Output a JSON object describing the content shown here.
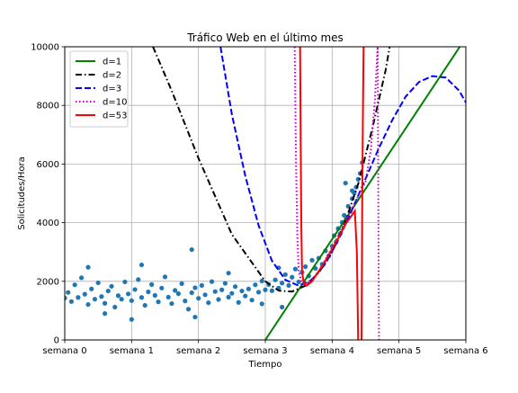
{
  "chart_data": {
    "type": "scatter",
    "title": "Tráfico Web en el último mes",
    "xlabel": "Tiempo",
    "ylabel": "Solicitudes/Hora",
    "xlim": [
      0,
      6
    ],
    "ylim": [
      0,
      10000
    ],
    "x_ticks": [
      {
        "value": 0,
        "label": "semana 0"
      },
      {
        "value": 1,
        "label": "semana 1"
      },
      {
        "value": 2,
        "label": "semana 2"
      },
      {
        "value": 3,
        "label": "semana 3"
      },
      {
        "value": 4,
        "label": "semana 4"
      },
      {
        "value": 5,
        "label": "semana 5"
      },
      {
        "value": 6,
        "label": "semana 6"
      }
    ],
    "y_ticks": [
      {
        "value": 0,
        "label": "0"
      },
      {
        "value": 2000,
        "label": "2000"
      },
      {
        "value": 4000,
        "label": "4000"
      },
      {
        "value": 6000,
        "label": "6000"
      },
      {
        "value": 8000,
        "label": "8000"
      },
      {
        "value": 10000,
        "label": "10000"
      }
    ],
    "grid": true,
    "legend_position": "top-left",
    "scatter": {
      "color": "#1f77b4",
      "description": "hourly request counts; roughly flat near 1600 until week 3.3, then rising steeply to about 6000 near week 4.4",
      "points": [
        [
          0.0,
          1430
        ],
        [
          0.05,
          1620
        ],
        [
          0.1,
          1310
        ],
        [
          0.15,
          1880
        ],
        [
          0.2,
          1450
        ],
        [
          0.25,
          2120
        ],
        [
          0.3,
          1560
        ],
        [
          0.35,
          1210
        ],
        [
          0.4,
          1740
        ],
        [
          0.45,
          1390
        ],
        [
          0.5,
          1950
        ],
        [
          0.55,
          1480
        ],
        [
          0.6,
          1250
        ],
        [
          0.65,
          1670
        ],
        [
          0.7,
          1830
        ],
        [
          0.75,
          1120
        ],
        [
          0.8,
          1510
        ],
        [
          0.85,
          1390
        ],
        [
          0.9,
          1980
        ],
        [
          0.95,
          1570
        ],
        [
          1.0,
          1340
        ],
        [
          1.05,
          1720
        ],
        [
          1.1,
          2060
        ],
        [
          1.15,
          1450
        ],
        [
          1.2,
          1180
        ],
        [
          1.25,
          1640
        ],
        [
          1.3,
          1890
        ],
        [
          1.35,
          1520
        ],
        [
          1.4,
          1300
        ],
        [
          1.45,
          1770
        ],
        [
          1.5,
          2150
        ],
        [
          1.55,
          1460
        ],
        [
          1.6,
          1240
        ],
        [
          1.65,
          1690
        ],
        [
          1.7,
          1580
        ],
        [
          1.75,
          1920
        ],
        [
          1.8,
          1330
        ],
        [
          1.85,
          1050
        ],
        [
          1.9,
          1610
        ],
        [
          1.95,
          1780
        ],
        [
          2.0,
          1420
        ],
        [
          2.05,
          1860
        ],
        [
          2.1,
          1540
        ],
        [
          2.15,
          1270
        ],
        [
          2.2,
          1990
        ],
        [
          2.25,
          1650
        ],
        [
          2.3,
          1380
        ],
        [
          2.35,
          1710
        ],
        [
          2.4,
          1930
        ],
        [
          2.45,
          1460
        ],
        [
          2.5,
          1590
        ],
        [
          2.55,
          1820
        ],
        [
          2.6,
          1280
        ],
        [
          2.65,
          1670
        ],
        [
          2.7,
          1500
        ],
        [
          2.75,
          1740
        ],
        [
          2.8,
          1360
        ],
        [
          2.85,
          1880
        ],
        [
          2.9,
          1630
        ],
        [
          2.95,
          2010
        ],
        [
          3.0,
          1710
        ],
        [
          3.05,
          1890
        ],
        [
          3.1,
          1680
        ],
        [
          3.15,
          2050
        ],
        [
          3.2,
          1770
        ],
        [
          3.25,
          1940
        ],
        [
          3.3,
          2230
        ],
        [
          3.35,
          1860
        ],
        [
          3.4,
          2140
        ],
        [
          3.45,
          2420
        ],
        [
          3.5,
          1980
        ],
        [
          3.55,
          2310
        ],
        [
          3.6,
          2500
        ],
        [
          3.65,
          2180
        ],
        [
          3.7,
          2720
        ],
        [
          3.75,
          2440
        ],
        [
          3.8,
          2790
        ],
        [
          3.85,
          2580
        ],
        [
          3.9,
          3040
        ],
        [
          3.95,
          2870
        ],
        [
          4.0,
          3200
        ],
        [
          4.03,
          3560
        ],
        [
          4.06,
          3340
        ],
        [
          4.09,
          3800
        ],
        [
          4.12,
          3620
        ],
        [
          4.15,
          4010
        ],
        [
          4.18,
          4250
        ],
        [
          4.21,
          4120
        ],
        [
          4.24,
          4560
        ],
        [
          4.27,
          4390
        ],
        [
          4.3,
          4820
        ],
        [
          4.33,
          5010
        ],
        [
          4.36,
          5210
        ],
        [
          4.39,
          5480
        ],
        [
          4.42,
          5680
        ],
        [
          4.45,
          6050
        ],
        [
          4.2,
          5350
        ],
        [
          4.3,
          5090
        ],
        [
          0.35,
          2480
        ],
        [
          1.15,
          2560
        ],
        [
          1.9,
          3080
        ],
        [
          2.45,
          2280
        ],
        [
          3.2,
          2460
        ],
        [
          1.0,
          700
        ],
        [
          0.6,
          900
        ],
        [
          1.95,
          780
        ],
        [
          2.95,
          1230
        ],
        [
          3.25,
          1120
        ]
      ]
    },
    "series": [
      {
        "name": "d=1",
        "color": "#008000",
        "dash": "solid",
        "formula": "linear fit, passes about (3, 0) and (5.9, 10000)",
        "points": [
          [
            3.0,
            0
          ],
          [
            5.91,
            10000
          ]
        ]
      },
      {
        "name": "d=2",
        "color": "#000000",
        "dash": "dashdot",
        "formula": "quadratic fit",
        "points": [
          [
            1.32,
            10000
          ],
          [
            1.6,
            8500
          ],
          [
            2.0,
            6200
          ],
          [
            2.5,
            3600
          ],
          [
            3.0,
            2000
          ],
          [
            3.2,
            1680
          ],
          [
            3.4,
            1650
          ],
          [
            3.6,
            1850
          ],
          [
            3.8,
            2300
          ],
          [
            4.0,
            3000
          ],
          [
            4.2,
            4050
          ],
          [
            4.4,
            5400
          ],
          [
            4.6,
            7200
          ],
          [
            4.8,
            9200
          ],
          [
            4.86,
            10000
          ]
        ]
      },
      {
        "name": "d=3",
        "color": "#0000ff",
        "dash": "dashed",
        "formula": "cubic fit",
        "points": [
          [
            2.33,
            10000
          ],
          [
            2.5,
            7700
          ],
          [
            2.7,
            5600
          ],
          [
            2.9,
            3900
          ],
          [
            3.1,
            2700
          ],
          [
            3.3,
            2050
          ],
          [
            3.5,
            1850
          ],
          [
            3.7,
            2050
          ],
          [
            3.9,
            2600
          ],
          [
            4.1,
            3450
          ],
          [
            4.3,
            4450
          ],
          [
            4.5,
            5500
          ],
          [
            4.7,
            6550
          ],
          [
            4.9,
            7500
          ],
          [
            5.1,
            8300
          ],
          [
            5.3,
            8800
          ],
          [
            5.5,
            9000
          ],
          [
            5.7,
            8950
          ],
          [
            5.9,
            8500
          ],
          [
            6.0,
            8100
          ]
        ]
      },
      {
        "name": "d=10",
        "color": "#bf00bf",
        "dash": "dotted",
        "formula": "degree-10 fit",
        "points": [
          [
            3.44,
            10000
          ],
          [
            3.46,
            6000
          ],
          [
            3.48,
            3500
          ],
          [
            3.5,
            2300
          ],
          [
            3.55,
            1950
          ],
          [
            3.6,
            1900
          ],
          [
            3.7,
            2050
          ],
          [
            3.8,
            2350
          ],
          [
            3.9,
            2750
          ],
          [
            4.0,
            3150
          ],
          [
            4.1,
            3600
          ],
          [
            4.2,
            4050
          ],
          [
            4.3,
            4500
          ],
          [
            4.4,
            4950
          ],
          [
            4.5,
            5400
          ],
          [
            4.58,
            6500
          ],
          [
            4.64,
            8200
          ],
          [
            4.68,
            10000
          ],
          [
            4.7,
            0
          ]
        ]
      },
      {
        "name": "d=53",
        "color": "#ff0000",
        "dash": "solid",
        "formula": "degree-53 fit",
        "points": [
          [
            3.52,
            10000
          ],
          [
            3.53,
            6500
          ],
          [
            3.54,
            3800
          ],
          [
            3.55,
            2300
          ],
          [
            3.58,
            1900
          ],
          [
            3.62,
            1850
          ],
          [
            3.7,
            2000
          ],
          [
            3.8,
            2350
          ],
          [
            3.9,
            2700
          ],
          [
            4.0,
            3100
          ],
          [
            4.1,
            3500
          ],
          [
            4.2,
            3950
          ],
          [
            4.28,
            4200
          ],
          [
            4.34,
            4400
          ],
          [
            4.37,
            3000
          ],
          [
            4.39,
            0
          ]
        ],
        "extra_segment": [
          [
            4.44,
            0
          ],
          [
            4.45,
            4800
          ],
          [
            4.46,
            7500
          ],
          [
            4.47,
            10000
          ]
        ]
      }
    ]
  }
}
